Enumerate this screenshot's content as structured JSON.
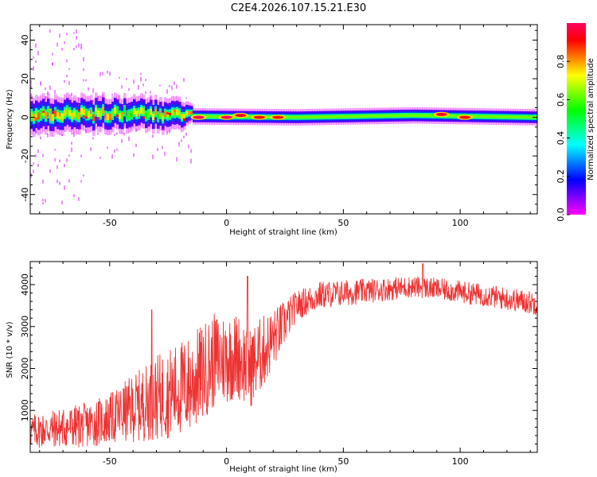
{
  "title": "C2E4.2026.107.15.21.E30",
  "colors": {
    "snr_line": "#ee3333",
    "background": "#ffffff",
    "spectrum_background": "#ffffff",
    "frame": "#000000"
  },
  "chart_data": [
    {
      "type": "heatmap",
      "name": "spectrogram",
      "title": "C2E4.2026.107.15.21.E30",
      "xlabel": "Height of straight line (km)",
      "ylabel": "Frequency (Hz)",
      "xlim": [
        -84,
        133
      ],
      "ylim": [
        -50,
        48
      ],
      "x_ticks": [
        -50,
        0,
        50,
        100
      ],
      "y_ticks": [
        -40,
        -20,
        0,
        20,
        40
      ],
      "x_tick_labels": [
        "-50",
        "0",
        "50",
        "100"
      ],
      "y_tick_labels": [
        "-40",
        "-20",
        "0",
        "20",
        "40"
      ],
      "grid": false,
      "colorbar": {
        "label": "Normalized spectral amplitude",
        "range": [
          0,
          1
        ],
        "ticks": [
          0,
          0.2,
          0.4,
          0.6,
          0.8
        ],
        "tick_labels": [
          "0.0",
          "0.2",
          "0.4",
          "0.6",
          "0.8"
        ],
        "colormap": [
          "#ff00ff",
          "#8000ff",
          "#0000ff",
          "#0080ff",
          "#00ffff",
          "#00ff80",
          "#00ff00",
          "#80ff00",
          "#ffff00",
          "#ff8000",
          "#ff0000",
          "#ff0060"
        ]
      },
      "centroid_track": [
        {
          "x": -84,
          "y": 0.5
        },
        {
          "x": -60,
          "y": 1.5
        },
        {
          "x": -40,
          "y": 2.5
        },
        {
          "x": -15,
          "y": 0.5
        },
        {
          "x": 30,
          "y": 0
        },
        {
          "x": 80,
          "y": 1.0
        },
        {
          "x": 133,
          "y": 0
        }
      ],
      "band_halfwidth_hz": [
        {
          "x": -84,
          "y": 6
        },
        {
          "x": -20,
          "y": 5
        },
        {
          "x": -14,
          "y": 2.5
        },
        {
          "x": 133,
          "y": 2.5
        }
      ],
      "hot_spots": [
        {
          "x": -12,
          "y": 0,
          "amplitude": 1.0
        },
        {
          "x": 0,
          "y": 0,
          "amplitude": 1.0
        },
        {
          "x": 6,
          "y": 1,
          "amplitude": 0.95
        },
        {
          "x": 14,
          "y": 0,
          "amplitude": 0.9
        },
        {
          "x": 22,
          "y": 0,
          "amplitude": 0.9
        },
        {
          "x": 92,
          "y": 1.5,
          "amplitude": 0.95
        },
        {
          "x": 102,
          "y": 0,
          "amplitude": 0.9
        }
      ]
    },
    {
      "type": "line",
      "name": "snr",
      "xlabel": "Height of straight line (km)",
      "ylabel": "SNR (10 * v/v)",
      "xlim": [
        -84,
        133
      ],
      "ylim": [
        0,
        4550
      ],
      "x_ticks": [
        -50,
        0,
        50,
        100
      ],
      "y_ticks": [
        1000,
        2000,
        3000,
        4000
      ],
      "x_tick_labels": [
        "-50",
        "0",
        "50",
        "100"
      ],
      "y_tick_labels": [
        "1000",
        "2000",
        "3000",
        "4000"
      ],
      "grid": false,
      "series": [
        {
          "name": "SNR",
          "color": "#ee3333",
          "trend": [
            {
              "x": -84,
              "y": 500
            },
            {
              "x": -60,
              "y": 650
            },
            {
              "x": -50,
              "y": 800
            },
            {
              "x": -30,
              "y": 1300
            },
            {
              "x": -16,
              "y": 1600
            },
            {
              "x": -5,
              "y": 2200
            },
            {
              "x": 5,
              "y": 2300
            },
            {
              "x": 10,
              "y": 2000
            },
            {
              "x": 20,
              "y": 2700
            },
            {
              "x": 30,
              "y": 3500
            },
            {
              "x": 40,
              "y": 3750
            },
            {
              "x": 60,
              "y": 3850
            },
            {
              "x": 80,
              "y": 3950
            },
            {
              "x": 90,
              "y": 3900
            },
            {
              "x": 110,
              "y": 3750
            },
            {
              "x": 133,
              "y": 3550
            }
          ],
          "noise_amplitude": [
            {
              "x": -84,
              "y": 400
            },
            {
              "x": -50,
              "y": 600
            },
            {
              "x": -30,
              "y": 1000
            },
            {
              "x": -16,
              "y": 1200
            },
            {
              "x": 0,
              "y": 1100
            },
            {
              "x": 15,
              "y": 900
            },
            {
              "x": 30,
              "y": 350
            },
            {
              "x": 80,
              "y": 250
            },
            {
              "x": 133,
              "y": 280
            }
          ],
          "peaks": [
            {
              "x": -32,
              "y": 3400
            },
            {
              "x": 9,
              "y": 4200
            },
            {
              "x": 84,
              "y": 4500
            }
          ]
        }
      ]
    }
  ]
}
